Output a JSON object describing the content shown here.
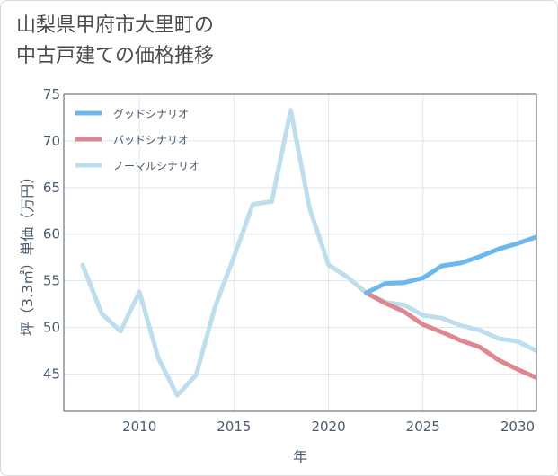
{
  "title": "山梨県甲府市大里町の\n中古戸建ての価格推移",
  "chart_data": {
    "type": "line",
    "title": "山梨県甲府市大里町の中古戸建ての価格推移",
    "xlabel": "年",
    "ylabel": "坪（3.3㎡）単価（万円）",
    "xlim": [
      2006,
      2031
    ],
    "ylim": [
      41,
      75
    ],
    "x_ticks": [
      2010,
      2015,
      2020,
      2025,
      2030
    ],
    "y_ticks": [
      45,
      50,
      55,
      60,
      65,
      70,
      75
    ],
    "grid": true,
    "legend_position": "top-left",
    "series": [
      {
        "name": "グッドシナリオ",
        "color": "#6cb8ee",
        "x": [
          2022,
          2023,
          2024,
          2025,
          2026,
          2027,
          2028,
          2029,
          2030,
          2031
        ],
        "values": [
          53.7,
          54.7,
          54.8,
          55.3,
          56.6,
          56.9,
          57.6,
          58.4,
          59.0,
          59.7
        ]
      },
      {
        "name": "バッドシナリオ",
        "color": "#de8790",
        "x": [
          2022,
          2023,
          2024,
          2025,
          2026,
          2027,
          2028,
          2029,
          2030,
          2031
        ],
        "values": [
          53.7,
          52.6,
          51.7,
          50.3,
          49.5,
          48.6,
          47.9,
          46.5,
          45.5,
          44.6
        ]
      },
      {
        "name": "ノーマルシナリオ",
        "color": "#bedeed",
        "x": [
          2007,
          2008,
          2009,
          2010,
          2011,
          2012,
          2013,
          2014,
          2015,
          2016,
          2017,
          2018,
          2019,
          2020,
          2021,
          2022,
          2023,
          2024,
          2025,
          2026,
          2027,
          2028,
          2029,
          2030,
          2031
        ],
        "values": [
          56.7,
          51.5,
          49.6,
          53.8,
          46.7,
          42.7,
          44.9,
          52.2,
          57.6,
          63.2,
          63.5,
          73.3,
          62.8,
          56.7,
          55.4,
          53.7,
          52.7,
          52.4,
          51.3,
          51.0,
          50.2,
          49.7,
          48.8,
          48.5,
          47.5
        ]
      }
    ]
  }
}
